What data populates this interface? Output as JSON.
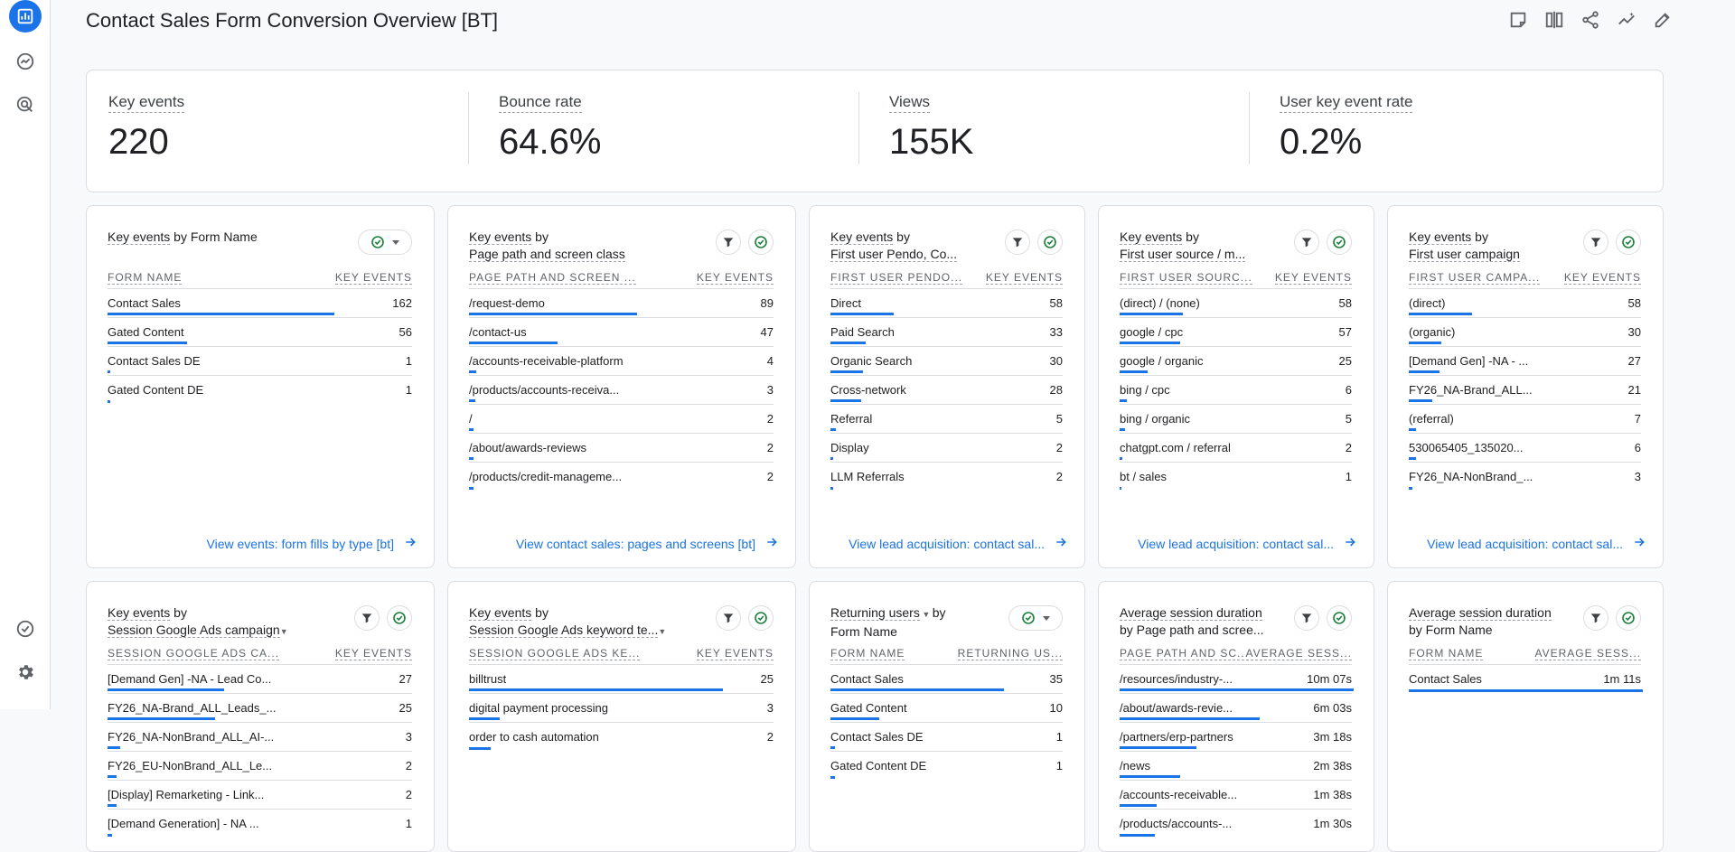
{
  "title": "Contact Sales Form Conversion Overview [BT]",
  "colors": {
    "accent": "#1a73e8",
    "green": "#188038"
  },
  "kpis": [
    {
      "label": "Key events",
      "value": "220"
    },
    {
      "label": "Bounce rate",
      "value": "64.6%"
    },
    {
      "label": "Views",
      "value": "155K"
    },
    {
      "label": "User key event rate",
      "value": "0.2%"
    }
  ],
  "cards": [
    {
      "title": "Key events by Form Name",
      "col1": "FORM NAME",
      "col2": "KEY EVENTS",
      "rows": [
        {
          "name": "Contact Sales",
          "value": "162",
          "pct": 0.74
        },
        {
          "name": "Gated Content",
          "value": "56",
          "pct": 0.26
        },
        {
          "name": "Contact Sales DE",
          "value": "1",
          "pct": 0.01
        },
        {
          "name": "Gated Content DE",
          "value": "1",
          "pct": 0.01
        }
      ],
      "link": "View events: form fills by type [bt]"
    },
    {
      "title": "Key events by Page path and screen class",
      "col1": "PAGE PATH AND SCREEN ...",
      "col2": "KEY EVENTS",
      "rows": [
        {
          "name": "/request-demo",
          "value": "89",
          "pct": 0.55
        },
        {
          "name": "/contact-us",
          "value": "47",
          "pct": 0.29
        },
        {
          "name": "/accounts-receivable-platform",
          "value": "4",
          "pct": 0.025
        },
        {
          "name": "/products/accounts-receiva...",
          "value": "3",
          "pct": 0.02
        },
        {
          "name": "/",
          "value": "2",
          "pct": 0.015
        },
        {
          "name": "/about/awards-reviews",
          "value": "2",
          "pct": 0.015
        },
        {
          "name": "/products/credit-manageme...",
          "value": "2",
          "pct": 0.015
        }
      ],
      "link": "View contact sales: pages and screens [bt]"
    },
    {
      "title": "Key events by First user Pendo, Co...",
      "col1": "FIRST USER PENDO...",
      "col2": "KEY EVENTS",
      "rows": [
        {
          "name": "Direct",
          "value": "58",
          "pct": 0.27
        },
        {
          "name": "Paid Search",
          "value": "33",
          "pct": 0.15
        },
        {
          "name": "Organic Search",
          "value": "30",
          "pct": 0.14
        },
        {
          "name": "Cross-network",
          "value": "28",
          "pct": 0.13
        },
        {
          "name": "Referral",
          "value": "5",
          "pct": 0.025
        },
        {
          "name": "Display",
          "value": "2",
          "pct": 0.01
        },
        {
          "name": "LLM Referrals",
          "value": "2",
          "pct": 0.01
        }
      ],
      "link": "View lead acquisition: contact sal..."
    },
    {
      "title": "Key events by First user source / m...",
      "col1": "FIRST USER SOURC...",
      "col2": "KEY EVENTS",
      "rows": [
        {
          "name": "(direct) / (none)",
          "value": "58",
          "pct": 0.27
        },
        {
          "name": "google / cpc",
          "value": "57",
          "pct": 0.26
        },
        {
          "name": "google / organic",
          "value": "25",
          "pct": 0.12
        },
        {
          "name": "bing / cpc",
          "value": "6",
          "pct": 0.03
        },
        {
          "name": "bing / organic",
          "value": "5",
          "pct": 0.025
        },
        {
          "name": "chatgpt.com / referral",
          "value": "2",
          "pct": 0.01
        },
        {
          "name": "bt / sales",
          "value": "1",
          "pct": 0.005
        }
      ],
      "link": "View lead acquisition: contact sal..."
    },
    {
      "title": "Key events by First user campaign",
      "col1": "FIRST USER CAMPA...",
      "col2": "KEY EVENTS",
      "rows": [
        {
          "name": "(direct)",
          "value": "58",
          "pct": 0.27
        },
        {
          "name": "(organic)",
          "value": "30",
          "pct": 0.14
        },
        {
          "name": "[Demand Gen] -NA - ...",
          "value": "27",
          "pct": 0.13
        },
        {
          "name": "FY26_NA-Brand_ALL...",
          "value": "21",
          "pct": 0.1
        },
        {
          "name": "(referral)",
          "value": "7",
          "pct": 0.03
        },
        {
          "name": "530065405_135020...",
          "value": "6",
          "pct": 0.03
        },
        {
          "name": "FY26_NA-NonBrand_...",
          "value": "3",
          "pct": 0.015
        }
      ],
      "link": "View lead acquisition: contact sal..."
    },
    {
      "title": "Key events by Session Google Ads campaign",
      "col1": "SESSION GOOGLE ADS CA...",
      "col2": "KEY EVENTS",
      "rows": [
        {
          "name": "[Demand Gen] -NA - Lead Co...",
          "value": "27",
          "pct": 0.38
        },
        {
          "name": "FY26_NA-Brand_ALL_Leads_...",
          "value": "25",
          "pct": 0.35
        },
        {
          "name": "FY26_NA-NonBrand_ALL_AI-...",
          "value": "3",
          "pct": 0.04
        },
        {
          "name": "FY26_EU-NonBrand_ALL_Le...",
          "value": "2",
          "pct": 0.03
        },
        {
          "name": "[Display] Remarketing - Link...",
          "value": "2",
          "pct": 0.03
        },
        {
          "name": "[Demand Generation] - NA ...",
          "value": "1",
          "pct": 0.015
        }
      ],
      "link": ""
    },
    {
      "title": "Key events by Session Google Ads keyword te...",
      "col1": "SESSION GOOGLE ADS KE...",
      "col2": "KEY EVENTS",
      "rows": [
        {
          "name": "billtrust",
          "value": "25",
          "pct": 0.83
        },
        {
          "name": "digital payment processing",
          "value": "3",
          "pct": 0.1
        },
        {
          "name": "order to cash automation",
          "value": "2",
          "pct": 0.07
        }
      ],
      "link": ""
    },
    {
      "title": "Returning users by Form Name",
      "col1": "FORM NAME",
      "col2": "RETURNING US...",
      "rows": [
        {
          "name": "Contact Sales",
          "value": "35",
          "pct": 0.74
        },
        {
          "name": "Gated Content",
          "value": "10",
          "pct": 0.21
        },
        {
          "name": "Contact Sales DE",
          "value": "1",
          "pct": 0.02
        },
        {
          "name": "Gated Content DE",
          "value": "1",
          "pct": 0.02
        }
      ],
      "link": ""
    },
    {
      "title": "Average session duration by Page path and scree...",
      "col1": "PAGE PATH AND SC...",
      "col2": "AVERAGE SESS...",
      "rows": [
        {
          "name": "/resources/industry-...",
          "value": "10m 07s",
          "pct": 1.0
        },
        {
          "name": "/about/awards-revie...",
          "value": "6m 03s",
          "pct": 0.6
        },
        {
          "name": "/partners/erp-partners",
          "value": "3m 18s",
          "pct": 0.33
        },
        {
          "name": "/news",
          "value": "2m 38s",
          "pct": 0.26
        },
        {
          "name": "/accounts-receivable...",
          "value": "1m 38s",
          "pct": 0.16
        },
        {
          "name": "/products/accounts-...",
          "value": "1m 30s",
          "pct": 0.15
        }
      ],
      "link": ""
    },
    {
      "title": "Average session duration by Form Name",
      "col1": "FORM NAME",
      "col2": "AVERAGE SESS...",
      "rows": [
        {
          "name": "Contact Sales",
          "value": "1m 11s",
          "pct": 1.0
        }
      ],
      "link": ""
    }
  ]
}
